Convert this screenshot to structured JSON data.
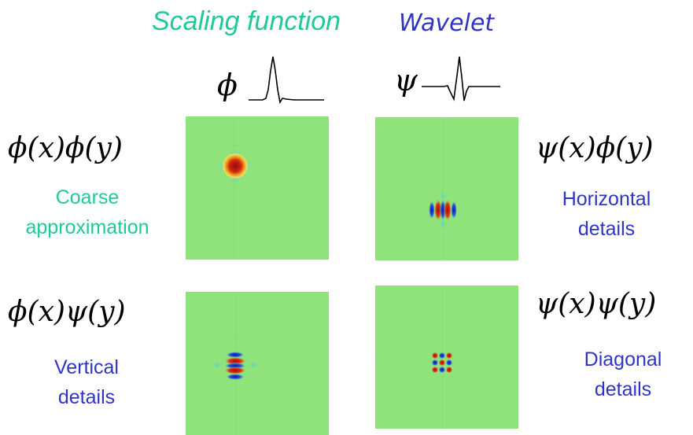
{
  "headers": {
    "scaling_function": "Scaling function",
    "wavelet": "Wavelet"
  },
  "symbols": {
    "phi": "ϕ",
    "psi": "ψ"
  },
  "formulas": {
    "phi_phi": "ϕ(x)ϕ(y)",
    "psi_phi": "ψ(x)ϕ(y)",
    "phi_psi": "ϕ(x)ψ(y)",
    "psi_psi": "ψ(x)ψ(y)"
  },
  "labels": {
    "coarse_line1": "Coarse",
    "coarse_line2": "approximation",
    "horizontal_line1": "Horizontal",
    "horizontal_line2": "details",
    "vertical_line1": "Vertical",
    "vertical_line2": "details",
    "diagonal_line1": "Diagonal",
    "diagonal_line2": "details"
  },
  "colors": {
    "scaling_accent": "#1fc99a",
    "wavelet_accent": "#2e34c6",
    "panel_background": "#8fe37a",
    "positive_lobe": "#b5120a",
    "negative_lobe": "#1016b8"
  }
}
